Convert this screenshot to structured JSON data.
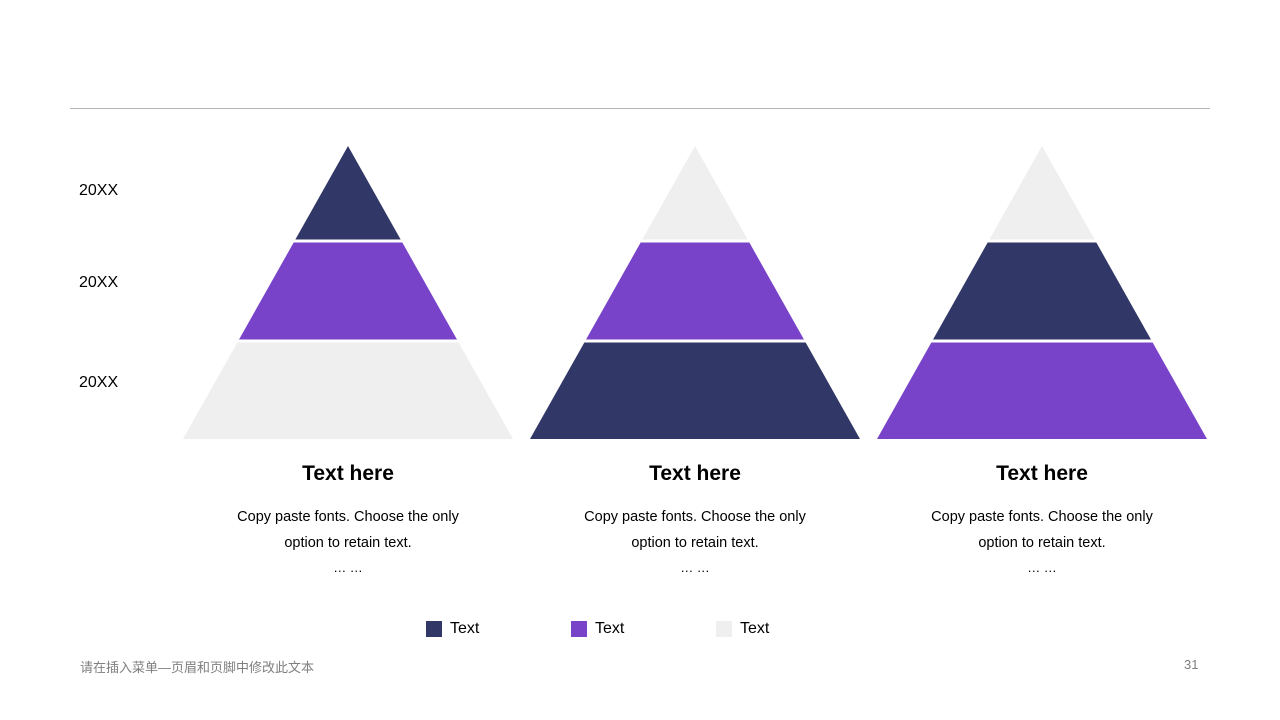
{
  "colors": {
    "navy": "#313766",
    "purple": "#7843c9",
    "light": "#efefef"
  },
  "row_labels": [
    "20XX",
    "20XX",
    "20XX"
  ],
  "columns": [
    {
      "title": "Text here",
      "desc_line1": "Copy paste fonts. Choose the only",
      "desc_line2": "option to retain text.",
      "dots": "… …",
      "tiers": [
        "navy",
        "purple",
        "light"
      ]
    },
    {
      "title": "Text here",
      "desc_line1": "Copy paste fonts. Choose the only",
      "desc_line2": "option to retain text.",
      "dots": "… …",
      "tiers": [
        "light",
        "purple",
        "navy"
      ]
    },
    {
      "title": "Text here",
      "desc_line1": "Copy paste fonts. Choose the only",
      "desc_line2": "option to retain text.",
      "dots": "… …",
      "tiers": [
        "light",
        "navy",
        "purple"
      ]
    }
  ],
  "legend": [
    {
      "color": "navy",
      "label": "Text"
    },
    {
      "color": "purple",
      "label": "Text"
    },
    {
      "color": "light",
      "label": "Text"
    }
  ],
  "footer": {
    "text": "请在插入菜单—页眉和页脚中修改此文本",
    "page_number": "31"
  }
}
